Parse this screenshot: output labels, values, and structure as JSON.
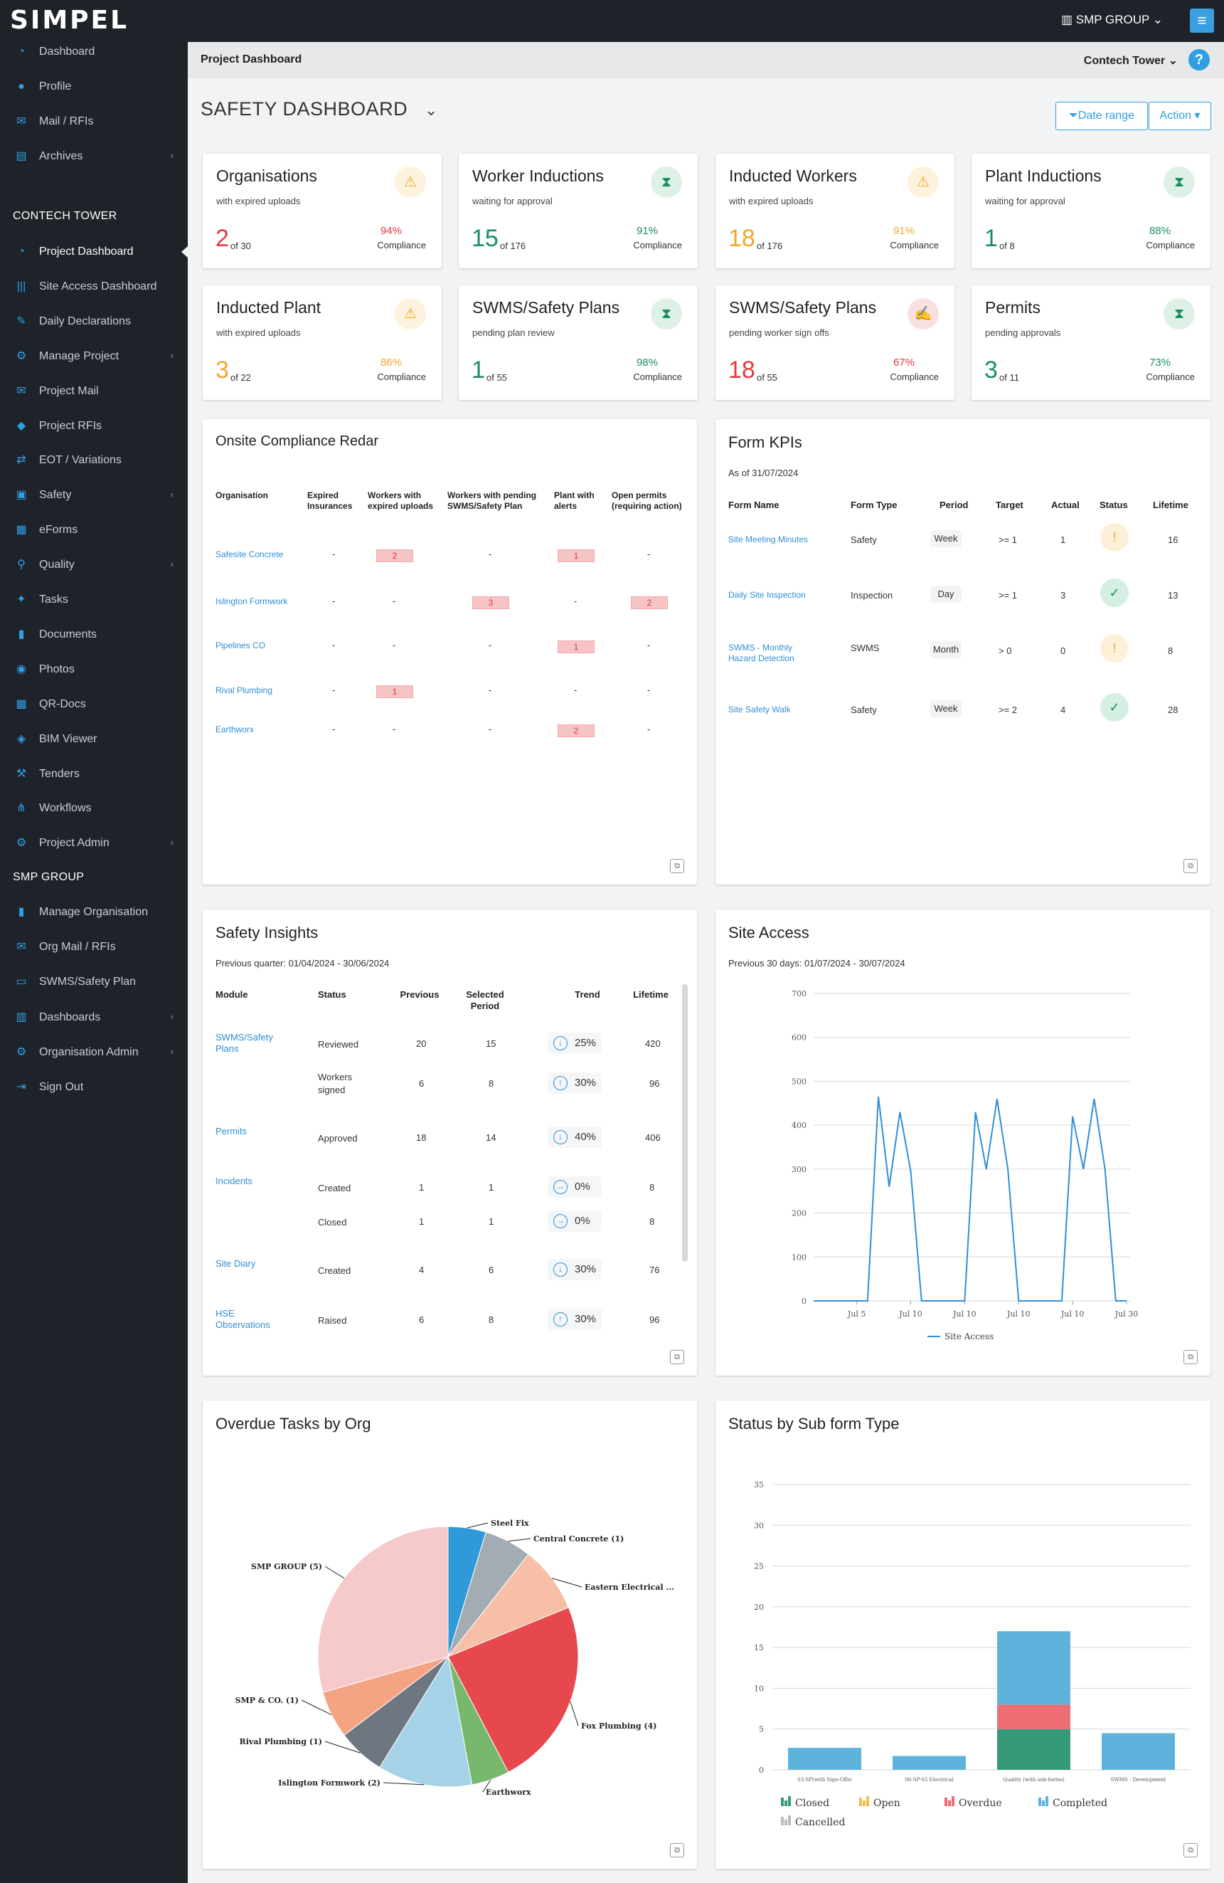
{
  "brand": {
    "logo": "SIMPEL",
    "org_switch": "SMP GROUP",
    "menu_icon": "hamburger-icon"
  },
  "sidebar": {
    "items_top": [
      {
        "label": "Dashboard",
        "icon": "dashboard-icon"
      },
      {
        "label": "Profile",
        "icon": "user-icon"
      },
      {
        "label": "Mail / RFIs",
        "icon": "mail-icon"
      },
      {
        "label": "Archives",
        "icon": "archive-icon",
        "expand": true
      }
    ],
    "section_project": "CONTECH TOWER",
    "items_project": [
      {
        "label": "Project Dashboard",
        "icon": "dashboard-icon",
        "active": true
      },
      {
        "label": "Site Access Dashboard",
        "icon": "barcode-icon"
      },
      {
        "label": "Daily Declarations",
        "icon": "edit-icon"
      },
      {
        "label": "Manage Project",
        "icon": "cogs-icon",
        "expand": true
      },
      {
        "label": "Project Mail",
        "icon": "mail-icon"
      },
      {
        "label": "Project RFIs",
        "icon": "tag-icon"
      },
      {
        "label": "EOT / Variations",
        "icon": "exchange-icon"
      },
      {
        "label": "Safety",
        "icon": "briefcase-icon",
        "expand": true
      },
      {
        "label": "eForms",
        "icon": "forms-icon"
      },
      {
        "label": "Quality",
        "icon": "map-pin-icon",
        "expand": true
      },
      {
        "label": "Tasks",
        "icon": "wrench-icon"
      },
      {
        "label": "Documents",
        "icon": "book-icon"
      },
      {
        "label": "Photos",
        "icon": "camera-icon"
      },
      {
        "label": "QR-Docs",
        "icon": "qr-icon"
      },
      {
        "label": "BIM Viewer",
        "icon": "cube-icon"
      },
      {
        "label": "Tenders",
        "icon": "gavel-icon"
      },
      {
        "label": "Workflows",
        "icon": "sitemap-icon"
      },
      {
        "label": "Project Admin",
        "icon": "gear-icon",
        "expand": true
      }
    ],
    "section_org": "SMP GROUP",
    "items_org": [
      {
        "label": "Manage Organisation",
        "icon": "book-icon"
      },
      {
        "label": "Org Mail / RFIs",
        "icon": "mail-icon"
      },
      {
        "label": "SWMS/Safety Plan",
        "icon": "id-card-icon"
      },
      {
        "label": "Dashboards",
        "icon": "bar-chart-icon",
        "expand": true
      },
      {
        "label": "Organisation Admin",
        "icon": "gear-icon",
        "expand": true
      },
      {
        "label": "Sign Out",
        "icon": "sign-out-icon"
      }
    ]
  },
  "subheader": {
    "title": "Project Dashboard",
    "project": "Contech Tower"
  },
  "page": {
    "title": "SAFETY DASHBOARD",
    "date_range": "Date range",
    "action": "Action"
  },
  "colors": {
    "sidebar": "#1e2329",
    "accent": "#2f9fe4",
    "red": "#e5393f",
    "orange": "#f0a830",
    "green": "#1a8f5f"
  },
  "kpis": [
    {
      "name": "Organisations",
      "sub": "with expired uploads",
      "value": "2",
      "of": "of 30",
      "pct": "94%",
      "compliance": "Compliance",
      "value_color": "#e5393f",
      "pct_color": "#e5393f",
      "icon": "warning-icon"
    },
    {
      "name": "Worker Inductions",
      "sub": "waiting for approval",
      "value": "15",
      "of": "of 176",
      "pct": "91%",
      "compliance": "Compliance",
      "value_color": "#1a8f5f",
      "pct_color": "#1a8f5f",
      "icon": "hourglass-icon"
    },
    {
      "name": "Inducted Workers",
      "sub": "with expired uploads",
      "value": "18",
      "of": "of 176",
      "pct": "91%",
      "compliance": "Compliance",
      "value_color": "#f0a830",
      "pct_color": "#f0a830",
      "icon": "warning-icon"
    },
    {
      "name": "Plant Inductions",
      "sub": "waiting for approval",
      "value": "1",
      "of": "of 8",
      "pct": "88%",
      "compliance": "Compliance",
      "value_color": "#1a8f5f",
      "pct_color": "#1a8f5f",
      "icon": "hourglass-icon"
    },
    {
      "name": "Inducted Plant",
      "sub": "with expired uploads",
      "value": "3",
      "of": "of 22",
      "pct": "86%",
      "compliance": "Compliance",
      "value_color": "#f0a830",
      "pct_color": "#f0a830",
      "icon": "warning-icon"
    },
    {
      "name": "SWMS/Safety Plans",
      "sub": "pending plan review",
      "value": "1",
      "of": "of 55",
      "pct": "98%",
      "compliance": "Compliance",
      "value_color": "#1a8f5f",
      "pct_color": "#1a8f5f",
      "icon": "hourglass-icon"
    },
    {
      "name": "SWMS/Safety Plans",
      "sub": "pending worker sign offs",
      "value": "18",
      "of": "of 55",
      "pct": "67%",
      "compliance": "Compliance",
      "value_color": "#e5393f",
      "pct_color": "#e5393f",
      "icon": "signature-icon"
    },
    {
      "name": "Permits",
      "sub": "pending approvals",
      "value": "3",
      "of": "of 11",
      "pct": "73%",
      "compliance": "Compliance",
      "value_color": "#1a8f5f",
      "pct_color": "#1a8f5f",
      "icon": "hourglass-icon"
    }
  ],
  "radar": {
    "title": "Onsite Compliance Redar",
    "headers": [
      "Organisation",
      "Expired Insurances",
      "Workers with expired uploads",
      "Workers with pending SWMS/Safety Plan",
      "Plant with alerts",
      "Open permits (requiring action)"
    ],
    "rows": [
      {
        "org": "Safesite Concrete",
        "cells": [
          "-",
          "2",
          "-",
          "1",
          "-"
        ]
      },
      {
        "org": "Islington Formwork",
        "cells": [
          "-",
          "-",
          "3",
          "-",
          "2"
        ]
      },
      {
        "org": "Pipelines CO",
        "cells": [
          "-",
          "-",
          "-",
          "1",
          "-"
        ]
      },
      {
        "org": "Rival Plumbing",
        "cells": [
          "-",
          "1",
          "-",
          "-",
          "-"
        ]
      },
      {
        "org": "Earthworx",
        "cells": [
          "-",
          "-",
          "-",
          "2",
          "-"
        ]
      }
    ]
  },
  "form_kpis": {
    "title": "Form KPIs",
    "as_of": "As of 31/07/2024",
    "headers": [
      "Form Name",
      "Form Type",
      "Period",
      "Target",
      "Actual",
      "Status",
      "Lifetime"
    ],
    "rows": [
      {
        "name": "Site Meeting Minutes",
        "type": "Safety",
        "period": "Week",
        "target": ">= 1",
        "actual": "1",
        "status": "warning",
        "lifetime": "16"
      },
      {
        "name": "Daily Site Inspection",
        "type": "Inspection",
        "period": "Day",
        "target": ">= 1",
        "actual": "3",
        "status": "ok",
        "lifetime": "13"
      },
      {
        "name": "SWMS - Monthly Hazard Detection",
        "type": "SWMS",
        "period": "Month",
        "target": "> 0",
        "actual": "0",
        "status": "warning",
        "lifetime": "8"
      },
      {
        "name": "Site Safety Walk",
        "type": "Safety",
        "period": "Week",
        "target": ">= 2",
        "actual": "4",
        "status": "ok",
        "lifetime": "28"
      }
    ]
  },
  "insights": {
    "title": "Safety Insights",
    "sub": "Previous quarter: 01/04/2024 - 30/06/2024",
    "headers": [
      "Module",
      "Status",
      "Previous",
      "Selected Period",
      "Trend",
      "Lifetime"
    ],
    "rows": [
      {
        "module": "SWMS/Safety Plans",
        "status": "Reviewed",
        "prev": "20",
        "sel": "15",
        "dir": "down",
        "trend": "25%",
        "life": "420"
      },
      {
        "module": "",
        "status": "Workers signed",
        "prev": "6",
        "sel": "8",
        "dir": "up",
        "trend": "30%",
        "life": "96"
      },
      {
        "module": "Permits",
        "status": "Approved",
        "prev": "18",
        "sel": "14",
        "dir": "down",
        "trend": "40%",
        "life": "406"
      },
      {
        "module": "Incidents",
        "status": "Created",
        "prev": "1",
        "sel": "1",
        "dir": "flat",
        "trend": "0%",
        "life": "8"
      },
      {
        "module": "",
        "status": "Closed",
        "prev": "1",
        "sel": "1",
        "dir": "flat",
        "trend": "0%",
        "life": "8"
      },
      {
        "module": "Site Diary",
        "status": "Created",
        "prev": "4",
        "sel": "6",
        "dir": "down",
        "trend": "30%",
        "life": "76"
      },
      {
        "module": "HSE Observations",
        "status": "Raised",
        "prev": "6",
        "sel": "8",
        "dir": "up",
        "trend": "30%",
        "life": "96"
      }
    ]
  },
  "site_access": {
    "title": "Site Access",
    "sub": "Previous 30 days: 01/07/2024 - 30/07/2024"
  },
  "overdue": {
    "title": "Overdue Tasks by Org"
  },
  "status_sub": {
    "title": "Status by Sub form Type"
  },
  "chart_data": [
    {
      "type": "line",
      "title": "Site Access",
      "xlabel": "",
      "ylabel": "",
      "x": [
        1,
        2,
        3,
        4,
        5,
        6,
        7,
        8,
        9,
        10,
        11,
        12,
        13,
        14,
        15,
        16,
        17,
        18,
        19,
        20,
        21,
        22,
        23,
        24,
        25,
        26,
        27,
        28,
        29,
        30
      ],
      "xticks": [
        "Jul 5",
        "Jul 10",
        "Jul 10",
        "Jul 10",
        "Jul 10",
        "Jul 30"
      ],
      "ylim": [
        0,
        700
      ],
      "yticks": [
        0,
        100,
        200,
        300,
        400,
        500,
        600,
        700
      ],
      "grid": true,
      "legend_position": "bottom",
      "series": [
        {
          "name": "Site Access",
          "color": "#2f8fd6",
          "values": [
            0,
            0,
            0,
            0,
            0,
            0,
            465,
            260,
            430,
            295,
            0,
            0,
            0,
            0,
            0,
            430,
            300,
            460,
            300,
            0,
            0,
            0,
            0,
            0,
            420,
            300,
            460,
            300,
            0,
            0
          ]
        }
      ]
    },
    {
      "type": "pie",
      "title": "Overdue Tasks by Org",
      "slices": [
        {
          "label": "Steel Fix",
          "value": 0.8,
          "color": "#2e9ad8"
        },
        {
          "label": "Central Concrete (1)",
          "value": 1,
          "color": "#a3acb3"
        },
        {
          "label": "Eastern Electrical ...",
          "value": 1.4,
          "color": "#f6bfa6"
        },
        {
          "label": "Fox Plumbing (4)",
          "value": 4,
          "color": "#e6484e"
        },
        {
          "label": "Earthworx",
          "value": 0.8,
          "color": "#78b86d"
        },
        {
          "label": "Islington Formwork (2)",
          "value": 2,
          "color": "#a5d2e6"
        },
        {
          "label": "Rival Plumbing (1)",
          "value": 1,
          "color": "#6e7780"
        },
        {
          "label": "SMP & CO. (1)",
          "value": 1,
          "color": "#f4a383"
        },
        {
          "label": "SMP GROUP (5)",
          "value": 5,
          "color": "#f6c9cb"
        }
      ]
    },
    {
      "type": "bar",
      "stacked": true,
      "title": "Status by Sub form Type",
      "categories": [
        "03-SP(with Sign-Offs)",
        "06-SP-03 Electrical",
        "Quality (with sub-forms)",
        "SWMS - Development"
      ],
      "ylim": [
        0,
        35
      ],
      "yticks": [
        0,
        5,
        10,
        15,
        20,
        25,
        30,
        35
      ],
      "grid": true,
      "legend_position": "bottom",
      "series": [
        {
          "name": "Closed",
          "color": "#35997a",
          "values": [
            0,
            0,
            5,
            0
          ]
        },
        {
          "name": "Open",
          "color": "#f2c14e",
          "values": [
            0,
            0,
            0,
            0
          ]
        },
        {
          "name": "Overdue",
          "color": "#ec6d73",
          "values": [
            0,
            0,
            3,
            0
          ]
        },
        {
          "name": "Completed",
          "color": "#5eb3dc",
          "values": [
            2.7,
            1.7,
            9,
            4.5
          ]
        },
        {
          "name": "Cancelled",
          "color": "#b9bdc1",
          "values": [
            0,
            0,
            0,
            0
          ]
        }
      ]
    }
  ]
}
